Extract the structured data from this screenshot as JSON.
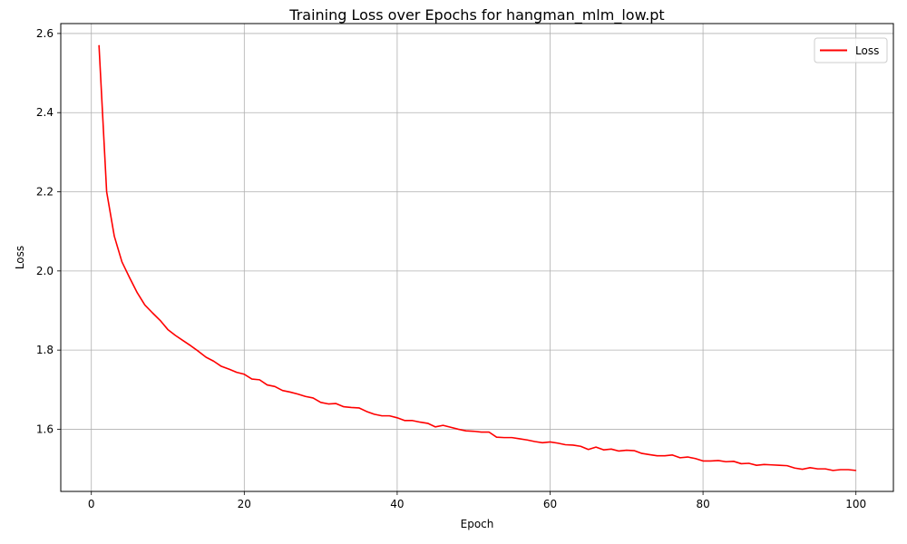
{
  "chart_data": {
    "type": "line",
    "title": "Training Loss over Epochs for hangman_mlm_low.pt",
    "xlabel": "Epoch",
    "ylabel": "Loss",
    "xlim": [
      -4.0,
      104.9
    ],
    "ylim": [
      1.443,
      2.625
    ],
    "xticks": [
      0,
      20,
      40,
      60,
      80,
      100
    ],
    "yticks": [
      1.6,
      1.8,
      2.0,
      2.2,
      2.4,
      2.6
    ],
    "xtick_labels": [
      "0",
      "20",
      "40",
      "60",
      "80",
      "100"
    ],
    "ytick_labels": [
      "1.6",
      "1.8",
      "2.0",
      "2.2",
      "2.4",
      "2.6"
    ],
    "grid": true,
    "legend_position": "top-right",
    "series": [
      {
        "name": "Loss",
        "color": "#ff0000",
        "x": [
          1,
          2,
          3,
          4,
          5,
          6,
          7,
          8,
          9,
          10,
          11,
          12,
          13,
          14,
          15,
          16,
          17,
          18,
          19,
          20,
          21,
          22,
          23,
          24,
          25,
          26,
          27,
          28,
          29,
          30,
          31,
          32,
          33,
          34,
          35,
          36,
          37,
          38,
          39,
          40,
          41,
          42,
          43,
          44,
          45,
          46,
          47,
          48,
          49,
          50,
          51,
          52,
          53,
          54,
          55,
          56,
          57,
          58,
          59,
          60,
          61,
          62,
          63,
          64,
          65,
          66,
          67,
          68,
          69,
          70,
          71,
          72,
          73,
          74,
          75,
          76,
          77,
          78,
          79,
          80,
          81,
          82,
          83,
          84,
          85,
          86,
          87,
          88,
          89,
          90,
          91,
          92,
          93,
          94,
          95,
          96,
          97,
          98,
          99,
          100
        ],
        "y": [
          2.57,
          2.2,
          2.088,
          2.023,
          1.983,
          1.945,
          1.914,
          1.894,
          1.875,
          1.852,
          1.837,
          1.824,
          1.811,
          1.797,
          1.782,
          1.772,
          1.759,
          1.752,
          1.744,
          1.739,
          1.727,
          1.725,
          1.712,
          1.708,
          1.698,
          1.694,
          1.689,
          1.683,
          1.679,
          1.668,
          1.664,
          1.665,
          1.657,
          1.655,
          1.654,
          1.645,
          1.638,
          1.634,
          1.634,
          1.629,
          1.622,
          1.622,
          1.618,
          1.615,
          1.606,
          1.61,
          1.605,
          1.6,
          1.596,
          1.595,
          1.593,
          1.593,
          1.58,
          1.579,
          1.579,
          1.576,
          1.573,
          1.569,
          1.566,
          1.568,
          1.565,
          1.561,
          1.56,
          1.557,
          1.549,
          1.555,
          1.548,
          1.55,
          1.545,
          1.547,
          1.546,
          1.539,
          1.536,
          1.533,
          1.533,
          1.535,
          1.528,
          1.53,
          1.526,
          1.52,
          1.52,
          1.521,
          1.518,
          1.519,
          1.513,
          1.514,
          1.509,
          1.511,
          1.51,
          1.509,
          1.508,
          1.502,
          1.499,
          1.503,
          1.5,
          1.5,
          1.496,
          1.498,
          1.498,
          1.496
        ]
      }
    ]
  }
}
